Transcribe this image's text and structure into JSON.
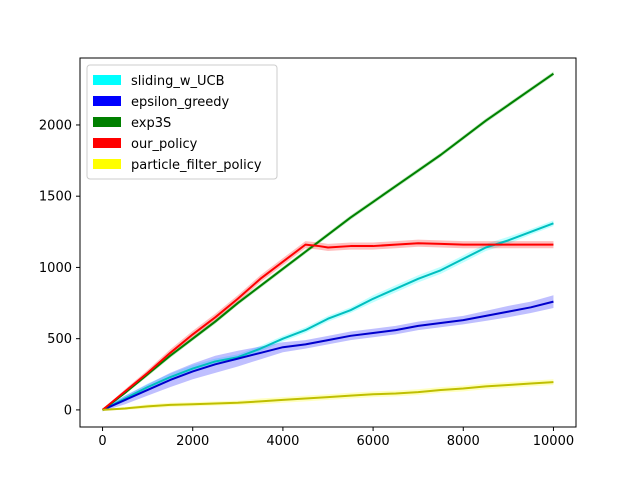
{
  "chart_data": {
    "type": "line",
    "title": "",
    "xlabel": "",
    "ylabel": "",
    "xlim": [
      -500,
      10500
    ],
    "ylim": [
      -120,
      2470
    ],
    "xticks": [
      0,
      2000,
      4000,
      6000,
      8000,
      10000
    ],
    "yticks": [
      0,
      500,
      1000,
      1500,
      2000
    ],
    "grid": false,
    "legend_position": "top-left",
    "legend_swatch_colors": [
      "#00ffff",
      "#0000ff",
      "#008000",
      "#ff0000",
      "#ffff00"
    ],
    "series": [
      {
        "name": "sliding_w_UCB",
        "color": "#00bfbf",
        "band_color": "#00ffff",
        "x": [
          0,
          500,
          1000,
          1500,
          2000,
          2500,
          3000,
          3500,
          4000,
          4500,
          5000,
          5500,
          6000,
          6500,
          7000,
          7500,
          8000,
          8500,
          9000,
          9500,
          10000
        ],
        "y": [
          0,
          80,
          160,
          230,
          290,
          340,
          370,
          430,
          500,
          560,
          640,
          700,
          780,
          850,
          920,
          980,
          1060,
          1140,
          1190,
          1250,
          1310
        ],
        "band": [
          10,
          20,
          25,
          25,
          25,
          20,
          20,
          20,
          20,
          20,
          20,
          20,
          25,
          25,
          25,
          25,
          25,
          25,
          25,
          20,
          20
        ]
      },
      {
        "name": "epsilon_greedy",
        "color": "#0000cc",
        "band_color": "#0000ff",
        "x": [
          0,
          500,
          1000,
          1500,
          2000,
          2500,
          3000,
          3500,
          4000,
          4500,
          5000,
          5500,
          6000,
          6500,
          7000,
          7500,
          8000,
          8500,
          9000,
          9500,
          10000
        ],
        "y": [
          0,
          70,
          140,
          210,
          270,
          320,
          360,
          400,
          440,
          460,
          490,
          520,
          540,
          560,
          590,
          610,
          630,
          660,
          690,
          720,
          760
        ],
        "band": [
          10,
          30,
          40,
          50,
          55,
          60,
          55,
          45,
          35,
          30,
          30,
          30,
          30,
          30,
          30,
          30,
          30,
          35,
          40,
          40,
          45
        ]
      },
      {
        "name": "exp3S",
        "color": "#008000",
        "band_color": "#00b000",
        "x": [
          0,
          500,
          1000,
          1500,
          2000,
          2500,
          3000,
          3500,
          4000,
          4500,
          5000,
          5500,
          6000,
          6500,
          7000,
          7500,
          8000,
          8500,
          9000,
          9500,
          10000
        ],
        "y": [
          0,
          120,
          250,
          380,
          500,
          620,
          750,
          870,
          990,
          1110,
          1230,
          1350,
          1460,
          1570,
          1680,
          1790,
          1910,
          2030,
          2140,
          2250,
          2360
        ],
        "band": [
          5,
          10,
          15,
          15,
          15,
          15,
          15,
          15,
          15,
          15,
          15,
          15,
          15,
          15,
          15,
          15,
          15,
          15,
          15,
          15,
          15
        ]
      },
      {
        "name": "our_policy",
        "color": "#ff0000",
        "band_color": "#ff0000",
        "x": [
          0,
          500,
          1000,
          1500,
          2000,
          2500,
          3000,
          3500,
          4000,
          4500,
          4800,
          5000,
          5500,
          6000,
          6500,
          7000,
          7500,
          8000,
          8500,
          9000,
          9500,
          10000
        ],
        "y": [
          0,
          130,
          260,
          400,
          530,
          650,
          780,
          920,
          1040,
          1160,
          1150,
          1140,
          1150,
          1150,
          1160,
          1170,
          1165,
          1160,
          1160,
          1160,
          1160,
          1160
        ],
        "band": [
          5,
          15,
          20,
          25,
          25,
          25,
          25,
          25,
          25,
          25,
          25,
          25,
          25,
          25,
          25,
          25,
          25,
          25,
          25,
          25,
          25,
          25
        ]
      },
      {
        "name": "particle_filter_policy",
        "color": "#bfbf00",
        "band_color": "#ffff00",
        "x": [
          0,
          500,
          1000,
          1500,
          2000,
          2500,
          3000,
          3500,
          4000,
          4500,
          5000,
          5500,
          6000,
          6500,
          7000,
          7500,
          8000,
          8500,
          9000,
          9500,
          10000
        ],
        "y": [
          0,
          10,
          25,
          35,
          40,
          45,
          50,
          60,
          70,
          80,
          90,
          100,
          110,
          115,
          125,
          140,
          150,
          165,
          175,
          185,
          195
        ],
        "band": [
          5,
          10,
          15,
          15,
          15,
          15,
          15,
          20,
          20,
          20,
          20,
          20,
          20,
          20,
          20,
          20,
          20,
          20,
          20,
          20,
          20
        ]
      }
    ]
  }
}
